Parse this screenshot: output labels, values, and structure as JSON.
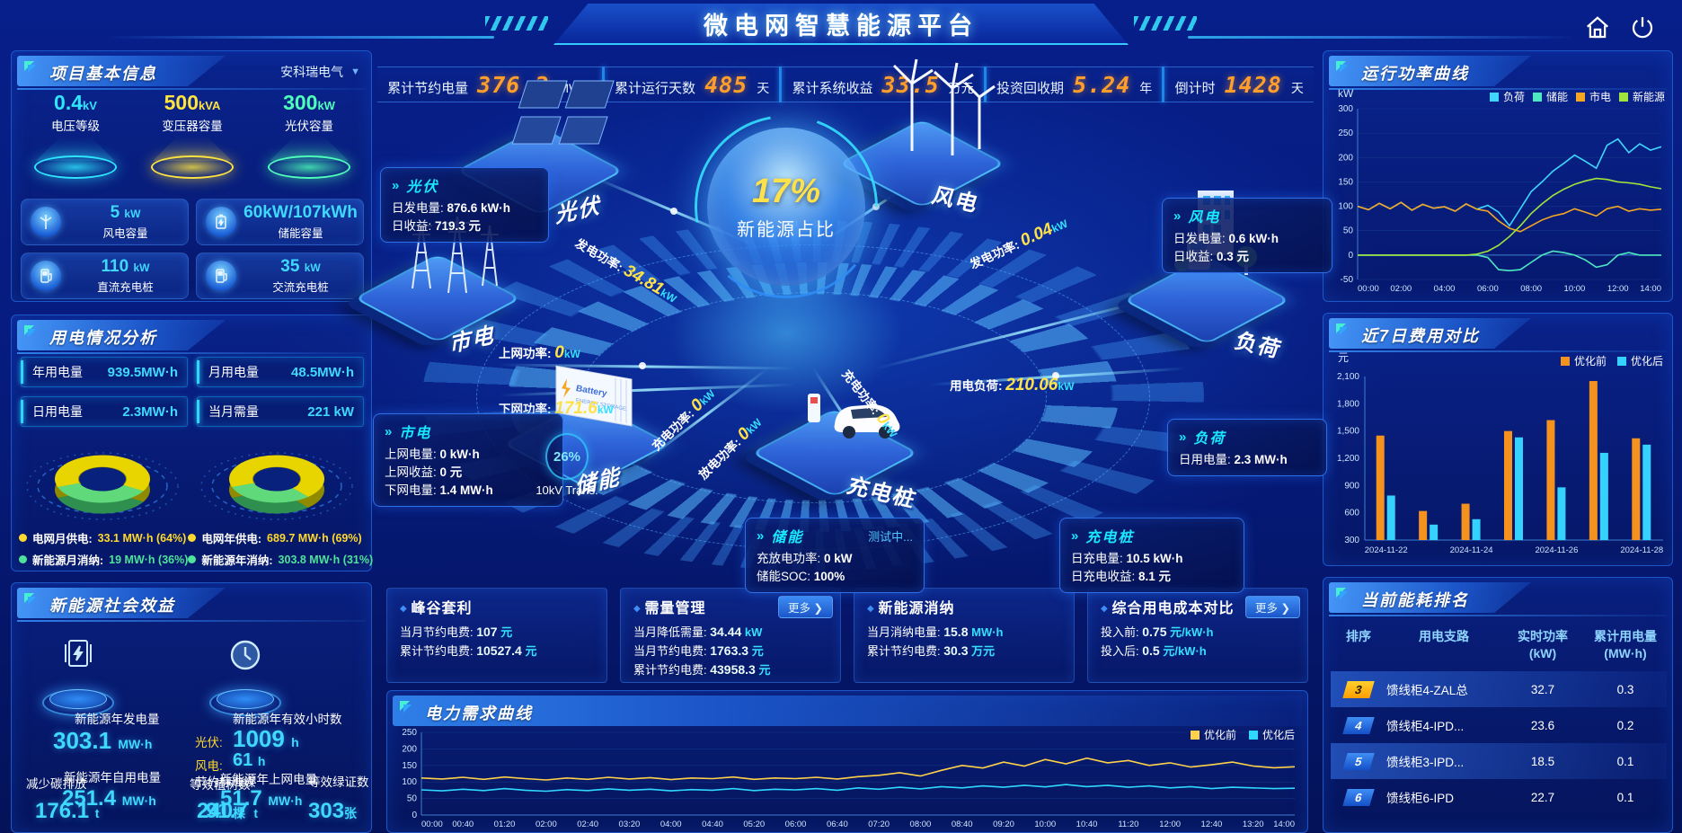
{
  "header": {
    "title": "微电网智慧能源平台"
  },
  "top_stats": [
    {
      "label": "累计节约电量",
      "value": "376.2",
      "unit": "MW·h"
    },
    {
      "label": "累计运行天数",
      "value": "485",
      "unit": "天"
    },
    {
      "label": "累计系统收益",
      "value": "33.5",
      "unit": "万元"
    },
    {
      "label": "投资回收期",
      "value": "5.24",
      "unit": "年"
    },
    {
      "label": "倒计时",
      "value": "1428",
      "unit": "天"
    }
  ],
  "project_info": {
    "title": "项目基本信息",
    "company": "安科瑞电气",
    "podiums": [
      {
        "value": "0.4",
        "unit": "kV",
        "label": "电压等级",
        "color": "#2ee6ff"
      },
      {
        "value": "500",
        "unit": "kVA",
        "label": "变压器容量",
        "color": "#ffe33e"
      },
      {
        "value": "300",
        "unit": "kW",
        "label": "光伏容量",
        "color": "#4dffb8"
      }
    ],
    "cards": [
      {
        "icon": "wind-turbine-icon",
        "value": "5",
        "unit": "kW",
        "label": "风电容量"
      },
      {
        "icon": "battery-icon",
        "value": "60kW/107kWh",
        "unit": "",
        "label": "储能容量"
      },
      {
        "icon": "charger-icon",
        "value": "110",
        "unit": "kW",
        "label": "直流充电桩"
      },
      {
        "icon": "charger-icon",
        "value": "35",
        "unit": "kW",
        "label": "交流充电桩"
      }
    ]
  },
  "usage_analysis": {
    "title": "用电情况分析",
    "stats": [
      {
        "label": "年用电量",
        "value": "939.5MW·h"
      },
      {
        "label": "月用电量",
        "value": "48.5MW·h"
      },
      {
        "label": "日用电量",
        "value": "2.3MW·h"
      },
      {
        "label": "当月需量",
        "value": "221  kW"
      }
    ],
    "donuts": [
      {
        "grid_pct": 64,
        "new_pct": 36
      },
      {
        "grid_pct": 69,
        "new_pct": 31
      }
    ],
    "legend": [
      {
        "label": "电网月供电:",
        "value": "33.1 MW·h (64%)",
        "color": "#ffd92e"
      },
      {
        "label": "电网年供电:",
        "value": "689.7 MW·h (69%)",
        "color": "#ffd92e"
      },
      {
        "label": "新能源月消纳:",
        "value": "19 MW·h (36%)",
        "color": "#4de39a"
      },
      {
        "label": "新能源年消纳:",
        "value": "303.8 MW·h (31%)",
        "color": "#4de39a"
      }
    ]
  },
  "social_benefit": {
    "title": "新能源社会效益",
    "left": {
      "gen_label": "新能源年发电量",
      "gen_value": "303.1",
      "gen_unit": "MW·h",
      "self_label": "新能源年自用电量",
      "self_value": "251.4",
      "self_unit": "MW·h",
      "co2_label": "减少碳排放",
      "co2_value": "176.1",
      "co2_unit": "t",
      "coal_label": "节约标准煤",
      "coal_value": "91.7",
      "coal_unit": "t"
    },
    "right": {
      "hours_label": "新能源年有效小时数",
      "pv_label": "光伏:",
      "pv_value": "1009",
      "pv_unit": "h",
      "wind_label": "风电:",
      "wind_value": "61",
      "wind_unit": "h",
      "export_label": "新能源年上网电量",
      "export_value": "51.7",
      "export_unit": "MW·h",
      "trees_label": "等效植树数",
      "trees_value": "240",
      "trees_unit": "棵",
      "cert_label": "等效绿证数",
      "cert_value": "303",
      "cert_unit": "张"
    }
  },
  "center": {
    "circle_pct": "17%",
    "circle_label": "新能源占比",
    "transformer_pct": "26%",
    "transformer_label": "10kV Trans.",
    "islands": {
      "pv": "光伏",
      "wind": "风电",
      "grid": "市电",
      "storage": "储能",
      "charger": "充电桩",
      "load": "负荷"
    },
    "flows": {
      "pv_gen": {
        "label": "发电功率:",
        "value": "34.81",
        "unit": "kW"
      },
      "to_grid": {
        "label": "上网功率:",
        "value": "0",
        "unit": "kW"
      },
      "from_grid": {
        "label": "下网功率:",
        "value": "171.6",
        "unit": "kW"
      },
      "wind_gen": {
        "label": "发电功率:",
        "value": "0.04",
        "unit": "kW"
      },
      "load_power": {
        "label": "用电负荷:",
        "value": "210.06",
        "unit": "kW"
      },
      "storage_charge": {
        "label": "充电功率:",
        "value": "0",
        "unit": "kW"
      },
      "storage_discharge": {
        "label": "放电功率:",
        "value": "0",
        "unit": "kW"
      },
      "pile_charge": {
        "label": "充电功率:",
        "value": "0",
        "unit": "kW"
      }
    },
    "info_boxes": {
      "pv": {
        "title": "光伏",
        "rows": [
          {
            "label": "日发电量:",
            "value": "876.6 kW·h"
          },
          {
            "label": "日收益:",
            "value": "719.3 元"
          }
        ]
      },
      "wind": {
        "title": "风电",
        "rows": [
          {
            "label": "日发电量:",
            "value": "0.6 kW·h"
          },
          {
            "label": "日收益:",
            "value": "0.3 元"
          }
        ]
      },
      "grid": {
        "title": "市电",
        "rows": [
          {
            "label": "上网电量:",
            "value": "0 kW·h"
          },
          {
            "label": "上网收益:",
            "value": "0 元"
          },
          {
            "label": "下网电量:",
            "value": "1.4 MW·h"
          }
        ]
      },
      "storage": {
        "title": "储能",
        "badge": "测试中...",
        "rows": [
          {
            "label": "充放电功率:",
            "value": "0 kW"
          },
          {
            "label": "储能SOC:",
            "value": "100%"
          }
        ]
      },
      "pile": {
        "title": "充电桩",
        "rows": [
          {
            "label": "日充电量:",
            "value": "10.5 kW·h"
          },
          {
            "label": "日充电收益:",
            "value": "8.1 元"
          }
        ]
      },
      "load": {
        "title": "负荷",
        "rows": [
          {
            "label": "日用电量:",
            "value": "2.3 MW·h"
          }
        ]
      }
    },
    "metric_panels": [
      {
        "title": "峰谷套利",
        "more": "",
        "rows": [
          {
            "label": "当月节约电费:",
            "value": "107",
            "unit": "元"
          },
          {
            "label": "累计节约电费:",
            "value": "10527.4",
            "unit": "元"
          }
        ]
      },
      {
        "title": "需量管理",
        "more": "更多 ❯",
        "rows": [
          {
            "label": "当月降低需量:",
            "value": "34.44",
            "unit": "kW"
          },
          {
            "label": "当月节约电费:",
            "value": "1763.3",
            "unit": "元"
          },
          {
            "label": "累计节约电费:",
            "value": "43958.3",
            "unit": "元"
          }
        ]
      },
      {
        "title": "新能源消纳",
        "more": "",
        "rows": [
          {
            "label": "当月消纳电量:",
            "value": "15.8",
            "unit": "MW·h"
          },
          {
            "label": "累计节约电费:",
            "value": "30.3",
            "unit": "万元"
          }
        ]
      },
      {
        "title": "综合用电成本对比",
        "more": "更多 ❯",
        "rows": [
          {
            "label": "投入前:",
            "value": "0.75",
            "unit": "元/kW·h"
          },
          {
            "label": "投入后:",
            "value": "0.5",
            "unit": "元/kW·h"
          }
        ]
      }
    ]
  },
  "ranking": {
    "title": "当前能耗排名",
    "headers": [
      "排序",
      "用电支路",
      "实时功率\n(kW)",
      "累计用电量\n(MW·h)"
    ],
    "rows": [
      {
        "rank": "3",
        "branch": "馈线柜4-ZAL总",
        "power": "32.7",
        "energy": "0.3",
        "highlight": true,
        "badge": "yellow"
      },
      {
        "rank": "4",
        "branch": "馈线柜4-IPD...",
        "power": "23.6",
        "energy": "0.2",
        "highlight": false,
        "badge": "blue"
      },
      {
        "rank": "5",
        "branch": "馈线柜3-IPD...",
        "power": "18.5",
        "energy": "0.1",
        "highlight": true,
        "badge": "blue"
      },
      {
        "rank": "6",
        "branch": "馈线柜6-IPD",
        "power": "22.7",
        "energy": "0.1",
        "highlight": false,
        "badge": "blue"
      }
    ]
  },
  "chart_data": [
    {
      "id": "run_power",
      "type": "line",
      "title": "运行功率曲线",
      "ylabel": "kW",
      "ylim": [
        -50,
        300
      ],
      "yticks": [
        300,
        250,
        200,
        150,
        100,
        50,
        0,
        -50
      ],
      "xticks": [
        "00:00",
        "02:00",
        "04:00",
        "06:00",
        "08:00",
        "10:00",
        "12:00",
        "14:00"
      ],
      "legend_position": "top-right",
      "grid": false,
      "series": [
        {
          "name": "负荷",
          "color": "#3fd6ff",
          "values": [
            100,
            93,
            106,
            95,
            108,
            92,
            104,
            96,
            99,
            90,
            105,
            94,
            102,
            88,
            60,
            95,
            130,
            150,
            172,
            188,
            205,
            192,
            178,
            225,
            238,
            210,
            228,
            215,
            222
          ]
        },
        {
          "name": "储能",
          "color": "#4de8c2",
          "values": [
            0,
            0,
            0,
            0,
            0,
            0,
            0,
            0,
            0,
            0,
            0,
            0,
            -5,
            -30,
            -32,
            -30,
            -15,
            0,
            8,
            5,
            0,
            -10,
            -25,
            -20,
            0,
            5,
            0,
            0,
            0
          ]
        },
        {
          "name": "市电",
          "color": "#f5a623",
          "values": [
            100,
            93,
            106,
            95,
            108,
            92,
            104,
            96,
            99,
            90,
            105,
            94,
            90,
            70,
            55,
            48,
            60,
            72,
            80,
            85,
            95,
            88,
            80,
            95,
            100,
            90,
            95,
            92,
            94
          ]
        },
        {
          "name": "新能源",
          "color": "#a0e43c",
          "values": [
            0,
            0,
            0,
            0,
            0,
            0,
            0,
            0,
            0,
            0,
            0,
            2,
            8,
            20,
            38,
            60,
            85,
            105,
            122,
            135,
            145,
            152,
            157,
            155,
            150,
            148,
            145,
            140,
            136
          ]
        }
      ]
    },
    {
      "id": "cost_7d",
      "type": "bar",
      "title": "近7日费用对比",
      "ylabel": "元",
      "ylim": [
        300,
        2100
      ],
      "yticks": [
        "2,100",
        "1,800",
        "1,500",
        "1,200",
        "900",
        "600",
        "300"
      ],
      "categories": [
        "2024-11-22",
        "2024-11-23",
        "2024-11-24",
        "2024-11-25",
        "2024-11-26",
        "2024-11-27",
        "2024-11-28"
      ],
      "xticks": [
        "2024-11-22",
        "2024-11-24",
        "2024-11-26",
        "2024-11-28"
      ],
      "legend_position": "top-right",
      "grid": false,
      "series": [
        {
          "name": "优化前",
          "color": "#f5921e",
          "values": [
            1450,
            620,
            700,
            1500,
            1620,
            2050,
            1420
          ]
        },
        {
          "name": "优化后",
          "color": "#35d2ff",
          "values": [
            790,
            470,
            530,
            1430,
            880,
            1260,
            1350
          ]
        }
      ]
    },
    {
      "id": "demand",
      "type": "line",
      "title": "电力需求曲线",
      "ylabel": "kW",
      "ylim": [
        0,
        250
      ],
      "yticks": [
        250,
        200,
        150,
        100,
        50,
        0
      ],
      "xticks": [
        "00:00",
        "00:40",
        "01:20",
        "02:00",
        "02:40",
        "03:20",
        "04:00",
        "04:40",
        "05:20",
        "06:00",
        "06:40",
        "07:20",
        "08:00",
        "08:40",
        "09:20",
        "10:00",
        "10:40",
        "11:20",
        "12:00",
        "12:40",
        "13:20",
        "14:00"
      ],
      "legend_position": "top-right",
      "grid": false,
      "series": [
        {
          "name": "优化前",
          "color": "#ffd24a",
          "values": [
            112,
            109,
            114,
            108,
            115,
            110,
            106,
            112,
            108,
            114,
            109,
            113,
            107,
            112,
            110,
            115,
            108,
            112,
            110,
            114,
            109,
            116,
            120,
            128,
            118,
            135,
            150,
            142,
            160,
            148,
            168,
            155,
            172,
            158,
            165,
            150,
            158,
            145,
            152,
            160,
            148,
            143,
            146
          ]
        },
        {
          "name": "优化后",
          "color": "#2fd8ff",
          "values": [
            76,
            73,
            78,
            74,
            80,
            75,
            72,
            77,
            74,
            79,
            75,
            78,
            73,
            77,
            75,
            80,
            74,
            78,
            76,
            80,
            75,
            82,
            78,
            84,
            79,
            86,
            82,
            88,
            84,
            90,
            85,
            92,
            86,
            90,
            84,
            88,
            82,
            86,
            80,
            84,
            82,
            80,
            81
          ]
        }
      ]
    }
  ]
}
